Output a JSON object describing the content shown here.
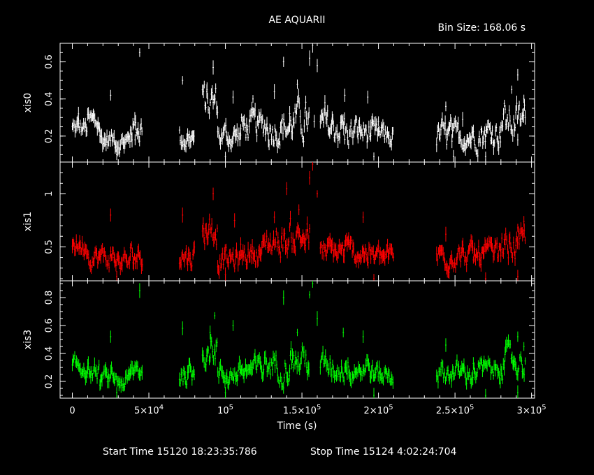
{
  "title": "AE AQUARII",
  "bin_size_label": "Bin Size: 168.06 s",
  "footer": {
    "start_label": "Start Time 15120 18:23:35:786",
    "stop_label": "Stop Time 15124  4:02:24:704"
  },
  "chart_data": {
    "type": "scatter",
    "xlabel": "Time (s)",
    "xlim": [
      -8000,
      302000
    ],
    "x_ticks": [
      {
        "v": 0,
        "label": "0"
      },
      {
        "v": 50000,
        "label": "5×10",
        "exp": "4"
      },
      {
        "v": 100000,
        "label": "10",
        "exp": "5"
      },
      {
        "v": 150000,
        "label": "1.5×10",
        "exp": "5"
      },
      {
        "v": 200000,
        "label": "2×10",
        "exp": "5"
      },
      {
        "v": 250000,
        "label": "2.5×10",
        "exp": "5"
      },
      {
        "v": 300000,
        "label": "3×10",
        "exp": "5"
      }
    ],
    "x_minor_step": 10000,
    "panels": [
      {
        "name": "xis0",
        "ylabel": "xis0",
        "color": "#ffffff",
        "ylim": [
          0.06,
          0.7
        ],
        "yticks": [
          {
            "v": 0.2,
            "label": "0.2"
          },
          {
            "v": 0.4,
            "label": "0.4"
          },
          {
            "v": 0.6,
            "label": "0.6"
          }
        ],
        "y_minor_step": 0.05,
        "segments": [
          {
            "x0": 0,
            "x1": 10000,
            "mean": 0.24,
            "amp": 0.04
          },
          {
            "x0": 10000,
            "x1": 18000,
            "mean": 0.27,
            "amp": 0.05
          },
          {
            "x0": 18000,
            "x1": 28000,
            "mean": 0.18,
            "amp": 0.04
          },
          {
            "x0": 28000,
            "x1": 38000,
            "mean": 0.17,
            "amp": 0.04
          },
          {
            "x0": 38000,
            "x1": 46000,
            "mean": 0.25,
            "amp": 0.06
          },
          {
            "x0": 70000,
            "x1": 80000,
            "mean": 0.19,
            "amp": 0.05
          },
          {
            "x0": 85000,
            "x1": 95000,
            "mean": 0.38,
            "amp": 0.08
          },
          {
            "x0": 95000,
            "x1": 110000,
            "mean": 0.2,
            "amp": 0.05
          },
          {
            "x0": 110000,
            "x1": 125000,
            "mean": 0.25,
            "amp": 0.06
          },
          {
            "x0": 125000,
            "x1": 142000,
            "mean": 0.25,
            "amp": 0.07
          },
          {
            "x0": 142000,
            "x1": 155000,
            "mean": 0.28,
            "amp": 0.08
          },
          {
            "x0": 162000,
            "x1": 178000,
            "mean": 0.25,
            "amp": 0.07
          },
          {
            "x0": 178000,
            "x1": 195000,
            "mean": 0.22,
            "amp": 0.06
          },
          {
            "x0": 195000,
            "x1": 210000,
            "mean": 0.2,
            "amp": 0.05
          },
          {
            "x0": 238000,
            "x1": 248000,
            "mean": 0.2,
            "amp": 0.06
          },
          {
            "x0": 248000,
            "x1": 262000,
            "mean": 0.2,
            "amp": 0.05
          },
          {
            "x0": 262000,
            "x1": 280000,
            "mean": 0.22,
            "amp": 0.06
          },
          {
            "x0": 280000,
            "x1": 296000,
            "mean": 0.28,
            "amp": 0.08
          }
        ],
        "peaks": [
          {
            "x": 4000,
            "y": 0.32
          },
          {
            "x": 25000,
            "y": 0.42
          },
          {
            "x": 44000,
            "y": 0.65
          },
          {
            "x": 72000,
            "y": 0.5
          },
          {
            "x": 88000,
            "y": 0.45
          },
          {
            "x": 92000,
            "y": 0.57
          },
          {
            "x": 105000,
            "y": 0.41
          },
          {
            "x": 118000,
            "y": 0.4
          },
          {
            "x": 132000,
            "y": 0.44
          },
          {
            "x": 138000,
            "y": 0.6
          },
          {
            "x": 147000,
            "y": 0.48
          },
          {
            "x": 155000,
            "y": 0.62
          },
          {
            "x": 157000,
            "y": 0.69
          },
          {
            "x": 160000,
            "y": 0.58
          },
          {
            "x": 165000,
            "y": 0.38
          },
          {
            "x": 178000,
            "y": 0.42
          },
          {
            "x": 193000,
            "y": 0.41
          },
          {
            "x": 200000,
            "y": 0.28
          },
          {
            "x": 244000,
            "y": 0.36
          },
          {
            "x": 255000,
            "y": 0.29
          },
          {
            "x": 287000,
            "y": 0.45
          },
          {
            "x": 291000,
            "y": 0.53
          },
          {
            "x": 295000,
            "y": 0.4
          }
        ],
        "dips": [
          {
            "x": 29000,
            "y": 0.1
          },
          {
            "x": 41000,
            "y": 0.18
          },
          {
            "x": 100000,
            "y": 0.09
          },
          {
            "x": 158000,
            "y": 0.28
          },
          {
            "x": 197000,
            "y": 0.09
          },
          {
            "x": 249000,
            "y": 0.09
          },
          {
            "x": 270000,
            "y": 0.09
          },
          {
            "x": 291000,
            "y": 0.18
          }
        ]
      },
      {
        "name": "xis1",
        "ylabel": "xis1",
        "color": "#ff0000",
        "ylim": [
          0.18,
          1.3
        ],
        "yticks": [
          {
            "v": 0.5,
            "label": "0.5"
          },
          {
            "v": 1.0,
            "label": "1"
          }
        ],
        "y_minor_step": 0.1,
        "segments": [
          {
            "x0": 0,
            "x1": 10000,
            "mean": 0.52,
            "amp": 0.07
          },
          {
            "x0": 10000,
            "x1": 18000,
            "mean": 0.4,
            "amp": 0.07
          },
          {
            "x0": 18000,
            "x1": 28000,
            "mean": 0.4,
            "amp": 0.08
          },
          {
            "x0": 28000,
            "x1": 38000,
            "mean": 0.36,
            "amp": 0.07
          },
          {
            "x0": 38000,
            "x1": 46000,
            "mean": 0.42,
            "amp": 0.09
          },
          {
            "x0": 70000,
            "x1": 80000,
            "mean": 0.42,
            "amp": 0.09
          },
          {
            "x0": 85000,
            "x1": 95000,
            "mean": 0.68,
            "amp": 0.12
          },
          {
            "x0": 95000,
            "x1": 110000,
            "mean": 0.38,
            "amp": 0.08
          },
          {
            "x0": 110000,
            "x1": 125000,
            "mean": 0.45,
            "amp": 0.09
          },
          {
            "x0": 125000,
            "x1": 142000,
            "mean": 0.55,
            "amp": 0.11
          },
          {
            "x0": 142000,
            "x1": 155000,
            "mean": 0.6,
            "amp": 0.12
          },
          {
            "x0": 162000,
            "x1": 178000,
            "mean": 0.45,
            "amp": 0.09
          },
          {
            "x0": 178000,
            "x1": 195000,
            "mean": 0.45,
            "amp": 0.09
          },
          {
            "x0": 195000,
            "x1": 210000,
            "mean": 0.4,
            "amp": 0.08
          },
          {
            "x0": 238000,
            "x1": 248000,
            "mean": 0.42,
            "amp": 0.09
          },
          {
            "x0": 248000,
            "x1": 262000,
            "mean": 0.42,
            "amp": 0.08
          },
          {
            "x0": 262000,
            "x1": 280000,
            "mean": 0.42,
            "amp": 0.09
          },
          {
            "x0": 280000,
            "x1": 296000,
            "mean": 0.52,
            "amp": 0.11
          }
        ],
        "peaks": [
          {
            "x": 25000,
            "y": 0.8
          },
          {
            "x": 72000,
            "y": 0.8
          },
          {
            "x": 92000,
            "y": 1.0
          },
          {
            "x": 106000,
            "y": 0.75
          },
          {
            "x": 132000,
            "y": 0.78
          },
          {
            "x": 140000,
            "y": 1.05
          },
          {
            "x": 148000,
            "y": 0.85
          },
          {
            "x": 155000,
            "y": 1.15
          },
          {
            "x": 157000,
            "y": 1.28
          },
          {
            "x": 160000,
            "y": 1.0
          },
          {
            "x": 190000,
            "y": 0.78
          },
          {
            "x": 244000,
            "y": 0.62
          },
          {
            "x": 291000,
            "y": 0.68
          },
          {
            "x": 295000,
            "y": 0.74
          }
        ],
        "dips": [
          {
            "x": 29000,
            "y": 0.22
          },
          {
            "x": 100000,
            "y": 0.24
          },
          {
            "x": 197000,
            "y": 0.2
          },
          {
            "x": 270000,
            "y": 0.2
          },
          {
            "x": 291000,
            "y": 0.22
          }
        ]
      },
      {
        "name": "xis3",
        "ylabel": "xis3",
        "color": "#00ff00",
        "ylim": [
          0.08,
          0.92
        ],
        "yticks": [
          {
            "v": 0.2,
            "label": "0.2"
          },
          {
            "v": 0.4,
            "label": "0.4"
          },
          {
            "v": 0.6,
            "label": "0.6"
          },
          {
            "v": 0.8,
            "label": "0.8"
          }
        ],
        "y_minor_step": 0.05,
        "segments": [
          {
            "x0": 0,
            "x1": 10000,
            "mean": 0.3,
            "amp": 0.05
          },
          {
            "x0": 10000,
            "x1": 18000,
            "mean": 0.26,
            "amp": 0.05
          },
          {
            "x0": 18000,
            "x1": 28000,
            "mean": 0.22,
            "amp": 0.05
          },
          {
            "x0": 28000,
            "x1": 38000,
            "mean": 0.2,
            "amp": 0.05
          },
          {
            "x0": 38000,
            "x1": 46000,
            "mean": 0.28,
            "amp": 0.06
          },
          {
            "x0": 70000,
            "x1": 80000,
            "mean": 0.25,
            "amp": 0.06
          },
          {
            "x0": 85000,
            "x1": 95000,
            "mean": 0.45,
            "amp": 0.09
          },
          {
            "x0": 95000,
            "x1": 110000,
            "mean": 0.25,
            "amp": 0.06
          },
          {
            "x0": 110000,
            "x1": 125000,
            "mean": 0.28,
            "amp": 0.07
          },
          {
            "x0": 125000,
            "x1": 142000,
            "mean": 0.32,
            "amp": 0.08
          },
          {
            "x0": 142000,
            "x1": 155000,
            "mean": 0.35,
            "amp": 0.09
          },
          {
            "x0": 162000,
            "x1": 178000,
            "mean": 0.3,
            "amp": 0.07
          },
          {
            "x0": 178000,
            "x1": 195000,
            "mean": 0.3,
            "amp": 0.07
          },
          {
            "x0": 195000,
            "x1": 210000,
            "mean": 0.25,
            "amp": 0.06
          },
          {
            "x0": 238000,
            "x1": 248000,
            "mean": 0.26,
            "amp": 0.06
          },
          {
            "x0": 248000,
            "x1": 262000,
            "mean": 0.26,
            "amp": 0.06
          },
          {
            "x0": 262000,
            "x1": 280000,
            "mean": 0.28,
            "amp": 0.06
          },
          {
            "x0": 280000,
            "x1": 296000,
            "mean": 0.34,
            "amp": 0.08
          }
        ],
        "peaks": [
          {
            "x": 25000,
            "y": 0.52
          },
          {
            "x": 44000,
            "y": 0.85
          },
          {
            "x": 72000,
            "y": 0.58
          },
          {
            "x": 90000,
            "y": 0.55
          },
          {
            "x": 93000,
            "y": 0.67
          },
          {
            "x": 105000,
            "y": 0.6
          },
          {
            "x": 138000,
            "y": 0.8
          },
          {
            "x": 147000,
            "y": 0.55
          },
          {
            "x": 155000,
            "y": 0.82
          },
          {
            "x": 157000,
            "y": 0.9
          },
          {
            "x": 160000,
            "y": 0.65
          },
          {
            "x": 177000,
            "y": 0.55
          },
          {
            "x": 190000,
            "y": 0.52
          },
          {
            "x": 244000,
            "y": 0.46
          },
          {
            "x": 291000,
            "y": 0.52
          },
          {
            "x": 295000,
            "y": 0.45
          }
        ],
        "dips": [
          {
            "x": 29000,
            "y": 0.12
          },
          {
            "x": 100000,
            "y": 0.12
          },
          {
            "x": 197000,
            "y": 0.1
          },
          {
            "x": 270000,
            "y": 0.1
          },
          {
            "x": 291000,
            "y": 0.12
          }
        ]
      }
    ]
  }
}
